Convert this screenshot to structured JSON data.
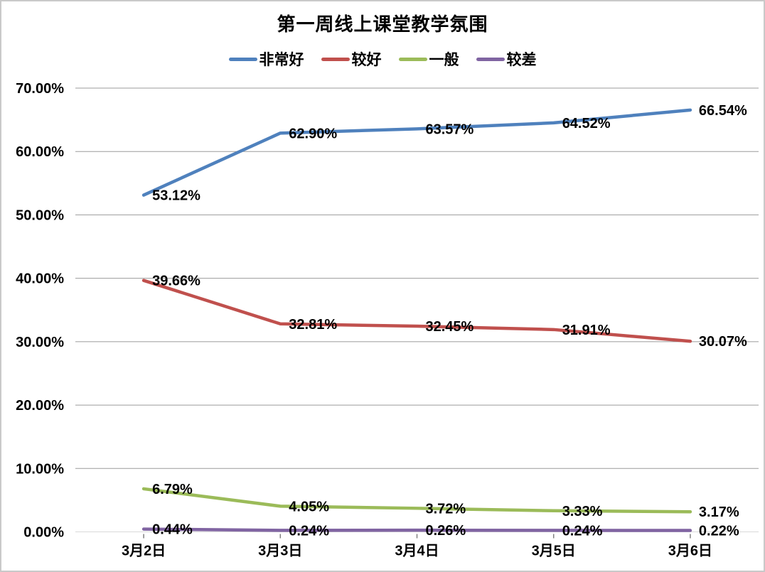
{
  "chart_data": {
    "type": "line",
    "title": "第一周线上课堂教学氛围",
    "categories": [
      "3月2日",
      "3月3日",
      "3月4日",
      "3月5日",
      "3月6日"
    ],
    "series": [
      {
        "name": "非常好",
        "color": "#4F81BD",
        "values": [
          53.12,
          62.9,
          63.57,
          64.52,
          66.54
        ],
        "labels": [
          "53.12%",
          "62.90%",
          "63.57%",
          "64.52%",
          "66.54%"
        ]
      },
      {
        "name": "较好",
        "color": "#C0504D",
        "values": [
          39.66,
          32.81,
          32.45,
          31.91,
          30.07
        ],
        "labels": [
          "39.66%",
          "32.81%",
          "32.45%",
          "31.91%",
          "30.07%"
        ]
      },
      {
        "name": "一般",
        "color": "#9BBB59",
        "values": [
          6.79,
          4.05,
          3.72,
          3.33,
          3.17
        ],
        "labels": [
          "6.79%",
          "4.05%",
          "3.72%",
          "3.33%",
          "3.17%"
        ]
      },
      {
        "name": "较差",
        "color": "#8064A2",
        "values": [
          0.44,
          0.24,
          0.26,
          0.24,
          0.22
        ],
        "labels": [
          "0.44%",
          "0.24%",
          "0.26%",
          "0.24%",
          "0.22%"
        ]
      }
    ],
    "y_axis": {
      "ticks_top_to_bottom": [
        "70.00%",
        "60.00%",
        "50.00%",
        "40.00%",
        "30.00%",
        "20.00%",
        "10.00%",
        "0.00%"
      ],
      "min": 0,
      "max": 70,
      "step": 10
    },
    "xlabel": "",
    "ylabel": "",
    "legend_position": "top",
    "grid": true,
    "colors": {
      "gridline": "#9B9B9B",
      "axis_line": "#D9D9D9",
      "tick_mark": "#808080",
      "text": "#000000",
      "frame_border": "#C9C9C9",
      "background": "#FFFFFF"
    }
  }
}
